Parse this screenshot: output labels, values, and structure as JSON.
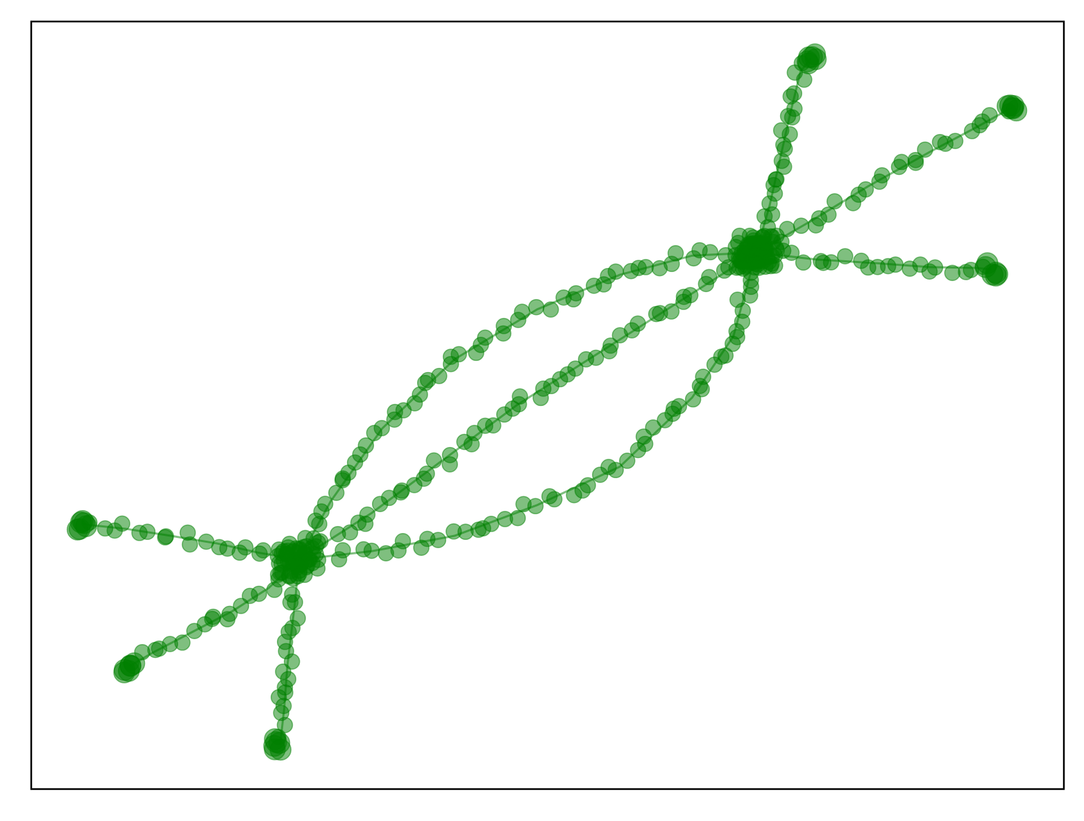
{
  "chart_data": {
    "type": "scatter",
    "title": "",
    "xlabel": "",
    "ylabel": "",
    "xlim": [
      0,
      1
    ],
    "ylim": [
      0,
      1
    ],
    "grid": false,
    "ticks": false,
    "legend": "none",
    "colors": {
      "marker": "#008000",
      "frame": "#000000",
      "background": "#ffffff"
    },
    "marker_alpha": 0.5,
    "hubs": [
      {
        "x": 0.259,
        "y": 0.299
      },
      {
        "x": 0.702,
        "y": 0.699
      }
    ],
    "series": [
      {
        "values": [
          [
            0.259,
            0.299
          ],
          [
            0.22,
            0.308
          ],
          [
            0.18,
            0.32
          ],
          [
            0.135,
            0.33
          ],
          [
            0.092,
            0.339
          ],
          [
            0.05,
            0.345
          ]
        ]
      },
      {
        "values": [
          [
            0.259,
            0.299
          ],
          [
            0.23,
            0.262
          ],
          [
            0.195,
            0.232
          ],
          [
            0.155,
            0.204
          ],
          [
            0.118,
            0.178
          ],
          [
            0.095,
            0.16
          ]
        ]
      },
      {
        "values": [
          [
            0.259,
            0.299
          ],
          [
            0.256,
            0.25
          ],
          [
            0.252,
            0.205
          ],
          [
            0.248,
            0.16
          ],
          [
            0.245,
            0.105
          ],
          [
            0.241,
            0.058
          ]
        ]
      },
      {
        "values": [
          [
            0.702,
            0.699
          ],
          [
            0.715,
            0.76
          ],
          [
            0.725,
            0.82
          ],
          [
            0.735,
            0.88
          ],
          [
            0.745,
            0.935
          ],
          [
            0.755,
            0.952
          ]
        ]
      },
      {
        "values": [
          [
            0.702,
            0.699
          ],
          [
            0.755,
            0.74
          ],
          [
            0.81,
            0.785
          ],
          [
            0.87,
            0.83
          ],
          [
            0.915,
            0.862
          ],
          [
            0.95,
            0.888
          ]
        ]
      },
      {
        "values": [
          [
            0.702,
            0.699
          ],
          [
            0.76,
            0.69
          ],
          [
            0.82,
            0.685
          ],
          [
            0.87,
            0.68
          ],
          [
            0.915,
            0.679
          ],
          [
            0.93,
            0.677
          ]
        ]
      },
      {
        "values": [
          [
            0.259,
            0.299
          ],
          [
            0.29,
            0.375
          ],
          [
            0.34,
            0.47
          ],
          [
            0.41,
            0.56
          ],
          [
            0.49,
            0.625
          ],
          [
            0.57,
            0.67
          ],
          [
            0.64,
            0.695
          ],
          [
            0.702,
            0.699
          ]
        ]
      },
      {
        "values": [
          [
            0.259,
            0.299
          ],
          [
            0.33,
            0.36
          ],
          [
            0.4,
            0.43
          ],
          [
            0.47,
            0.5
          ],
          [
            0.54,
            0.56
          ],
          [
            0.61,
            0.62
          ],
          [
            0.702,
            0.699
          ]
        ]
      },
      {
        "values": [
          [
            0.259,
            0.299
          ],
          [
            0.33,
            0.31
          ],
          [
            0.41,
            0.33
          ],
          [
            0.49,
            0.37
          ],
          [
            0.57,
            0.42
          ],
          [
            0.64,
            0.51
          ],
          [
            0.68,
            0.59
          ],
          [
            0.702,
            0.699
          ]
        ]
      }
    ]
  }
}
